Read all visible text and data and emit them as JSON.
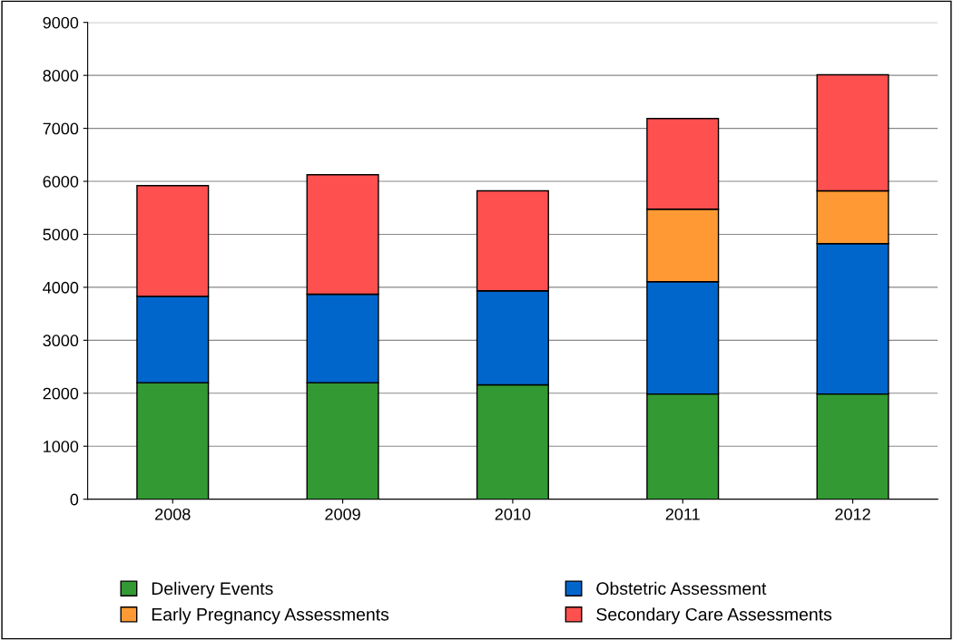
{
  "chart_data": {
    "type": "bar",
    "stacked": true,
    "categories": [
      "2008",
      "2009",
      "2010",
      "2011",
      "2012"
    ],
    "series": [
      {
        "name": "Delivery Events",
        "color": "#339933",
        "values": [
          2200,
          2200,
          2160,
          1985,
          1985
        ]
      },
      {
        "name": "Obstetric Assessment",
        "color": "#0066cc",
        "values": [
          1630,
          1670,
          1775,
          2120,
          2840
        ]
      },
      {
        "name": "Early Pregnancy Assessments",
        "color": "#ff9933",
        "values": [
          0,
          0,
          0,
          1370,
          995
        ]
      },
      {
        "name": "Secondary Care Assessments",
        "color": "#ff5050",
        "values": [
          2090,
          2255,
          1885,
          1710,
          2190
        ]
      }
    ],
    "ylim": [
      0,
      9000
    ],
    "yticks": [
      0,
      1000,
      2000,
      3000,
      4000,
      5000,
      6000,
      7000,
      8000,
      9000
    ],
    "grid": "y",
    "legend": "bottom"
  }
}
